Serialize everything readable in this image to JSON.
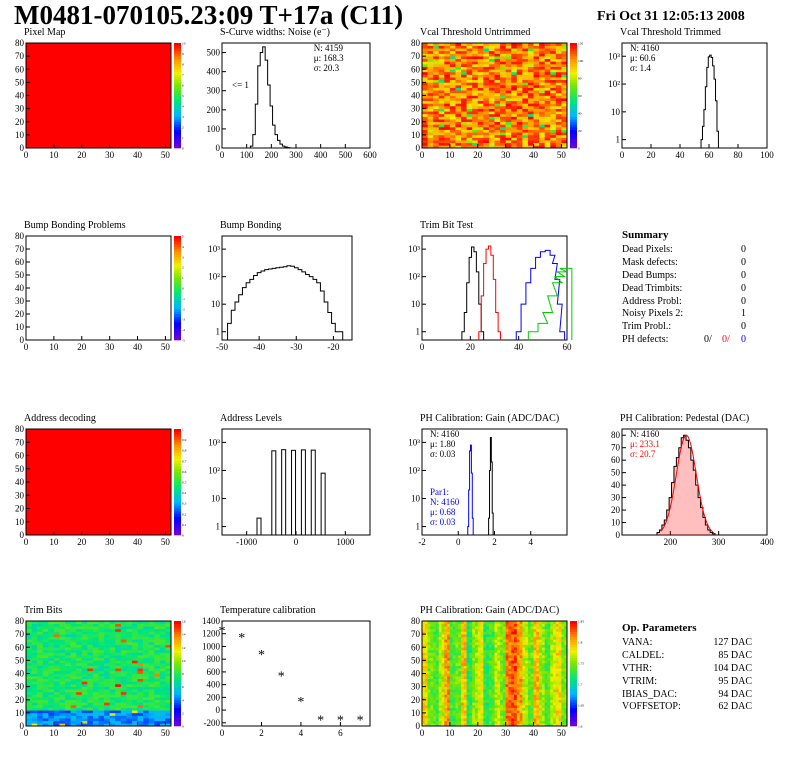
{
  "header": {
    "title": "M0481-070105.23:09 T+17a (C11)",
    "date": "Fri Oct 31 12:05:13 2008"
  },
  "colors": {
    "red": "#ff0000",
    "blue": "#0000ff",
    "green": "#00cc00",
    "black": "#000000"
  },
  "summary": {
    "title": "Summary",
    "rows": [
      {
        "label": "Dead Pixels:",
        "value": "0"
      },
      {
        "label": "Mask defects:",
        "value": "0"
      },
      {
        "label": "Dead Bumps:",
        "value": "0"
      },
      {
        "label": "Dead Trimbits:",
        "value": "0"
      },
      {
        "label": "Address Probl:",
        "value": "0"
      },
      {
        "label": "Noisy Pixels 2:",
        "value": "1"
      },
      {
        "label": "Trim Probl.:",
        "value": "0"
      }
    ],
    "ph_label": "PH defects:",
    "ph_values": [
      "0/",
      "0/",
      "0"
    ]
  },
  "op_params": {
    "title": "Op. Parameters",
    "rows": [
      {
        "label": "VANA:",
        "value": "127 DAC"
      },
      {
        "label": "CALDEL:",
        "value": "85 DAC"
      },
      {
        "label": "VTHR:",
        "value": "104 DAC"
      },
      {
        "label": "VTRIM:",
        "value": "95 DAC"
      },
      {
        "label": "IBIAS_DAC:",
        "value": "94 DAC"
      },
      {
        "label": "VOFFSETOP:",
        "value": "62 DAC"
      }
    ]
  },
  "chart_data": [
    {
      "id": "pixel_map",
      "type": "heatmap",
      "title": "Pixel Map",
      "xlim": [
        0,
        52
      ],
      "ylim": [
        0,
        80
      ],
      "xticks": [
        "0",
        "10",
        "20",
        "30",
        "40",
        "50"
      ],
      "yticks": [
        "0",
        "10",
        "20",
        "30",
        "40",
        "50",
        "60",
        "70",
        "80"
      ],
      "zticks": [
        "0",
        "1",
        "2",
        "3",
        "4",
        "5",
        "6",
        "7",
        "8",
        "9",
        "10"
      ],
      "fill": "uniform-max"
    },
    {
      "id": "scurve_widths",
      "type": "bar",
      "title": "S-Curve widths: Noise (e⁻)",
      "xlim": [
        0,
        600
      ],
      "ylim": [
        0,
        550
      ],
      "xticks": [
        "0",
        "100",
        "200",
        "300",
        "400",
        "500",
        "600"
      ],
      "yticks": [
        "0",
        "100",
        "200",
        "300",
        "400",
        "500"
      ],
      "stats": [
        "N: 4159",
        "μ: 168.3",
        "σ: 20.3"
      ],
      "annotation": "<= 1",
      "x": [
        120,
        130,
        140,
        150,
        160,
        170,
        180,
        190,
        200,
        210,
        220,
        230,
        240,
        250,
        260,
        270
      ],
      "values": [
        10,
        70,
        230,
        430,
        500,
        530,
        460,
        330,
        220,
        120,
        70,
        40,
        20,
        10,
        5,
        2
      ]
    },
    {
      "id": "vcal_untrimmed",
      "type": "heatmap",
      "title": "Vcal Threshold Untrimmed",
      "xlim": [
        0,
        52
      ],
      "ylim": [
        0,
        80
      ],
      "xticks": [
        "0",
        "10",
        "20",
        "30",
        "40",
        "50"
      ],
      "yticks": [
        "0",
        "10",
        "20",
        "30",
        "40",
        "50",
        "60",
        "70",
        "80"
      ],
      "zticks": [
        "0",
        "20",
        "40",
        "60",
        "80",
        "100",
        "120"
      ],
      "fill": "noisy-high"
    },
    {
      "id": "vcal_trimmed",
      "type": "bar",
      "title": "Vcal Threshold Trimmed",
      "xlim": [
        0,
        100
      ],
      "log": true,
      "xticks": [
        "0",
        "20",
        "40",
        "60",
        "80",
        "100"
      ],
      "yticks": [
        "1",
        "10",
        "10²",
        "10³"
      ],
      "stats": [
        "N: 4160",
        "μ: 60.6",
        "σ:  1.4"
      ],
      "x": [
        55,
        56,
        57,
        58,
        59,
        60,
        61,
        62,
        63,
        64,
        65,
        66
      ],
      "values": [
        1,
        3,
        12,
        80,
        400,
        950,
        1100,
        900,
        450,
        150,
        25,
        2
      ]
    },
    {
      "id": "bump_bonding_problems",
      "type": "heatmap",
      "title": "Bump Bonding Problems",
      "xlim": [
        0,
        52
      ],
      "ylim": [
        0,
        80
      ],
      "xticks": [
        "0",
        "10",
        "20",
        "30",
        "40",
        "50"
      ],
      "yticks": [
        "0",
        "10",
        "20",
        "30",
        "40",
        "50",
        "60",
        "70",
        "80"
      ],
      "zticks": [
        "-5",
        "-4",
        "-3",
        "-2",
        "-1",
        "0",
        "1",
        "2",
        "3",
        "4",
        "5"
      ],
      "fill": "empty"
    },
    {
      "id": "bump_bonding",
      "type": "bar",
      "title": "Bump Bonding",
      "xlim": [
        -50,
        -15
      ],
      "log": true,
      "xticks": [
        "-50",
        "-40",
        "-30",
        "-20"
      ],
      "yticks": [
        "1",
        "10",
        "10²",
        "10³"
      ],
      "x": [
        -48,
        -47,
        -46,
        -45,
        -44,
        -43,
        -42,
        -41,
        -40,
        -39,
        -38,
        -37,
        -36,
        -35,
        -34,
        -33,
        -32,
        -31,
        -30,
        -29,
        -28,
        -27,
        -26,
        -25,
        -24,
        -23,
        -22,
        -21,
        -20,
        -19,
        -18
      ],
      "values": [
        2,
        6,
        12,
        22,
        40,
        60,
        80,
        110,
        140,
        160,
        180,
        190,
        200,
        210,
        220,
        230,
        250,
        240,
        210,
        180,
        150,
        120,
        100,
        80,
        60,
        30,
        12,
        5,
        2,
        1,
        1
      ]
    },
    {
      "id": "trim_bit_test",
      "type": "line",
      "title": "Trim Bit Test",
      "xlim": [
        0,
        60
      ],
      "log": true,
      "xticks": [
        "0",
        "20",
        "40",
        "60"
      ],
      "yticks": [
        "1",
        "10",
        "10²",
        "10³"
      ],
      "series": [
        {
          "color": "#000000",
          "x": [
            17,
            18,
            19,
            20,
            21,
            22,
            23,
            24,
            25
          ],
          "values": [
            1,
            5,
            60,
            500,
            1200,
            800,
            150,
            10,
            1
          ]
        },
        {
          "color": "#ff0000",
          "x": [
            24,
            25,
            26,
            27,
            28,
            29,
            30,
            31,
            32
          ],
          "values": [
            1,
            20,
            300,
            1000,
            1300,
            600,
            80,
            5,
            1
          ]
        },
        {
          "color": "#0000ff",
          "x": [
            40,
            42,
            44,
            46,
            48,
            50,
            52,
            54,
            55,
            56,
            57,
            58
          ],
          "values": [
            1,
            10,
            60,
            200,
            500,
            800,
            900,
            600,
            300,
            80,
            10,
            1
          ]
        },
        {
          "color": "#00cc00",
          "x": [
            46,
            50,
            52,
            54,
            56,
            57,
            58,
            59,
            60
          ],
          "values": [
            1,
            2,
            5,
            20,
            60,
            100,
            150,
            200,
            200
          ]
        }
      ]
    },
    {
      "id": "address_decoding",
      "type": "heatmap",
      "title": "Address decoding",
      "xlim": [
        0,
        52
      ],
      "ylim": [
        0,
        80
      ],
      "xticks": [
        "0",
        "10",
        "20",
        "30",
        "40",
        "50"
      ],
      "yticks": [
        "0",
        "10",
        "20",
        "30",
        "40",
        "50",
        "60",
        "70",
        "80"
      ],
      "zticks": [
        "0",
        "0.1",
        "0.2",
        "0.3",
        "0.4",
        "0.5",
        "0.6",
        "0.7",
        "0.8",
        "0.9",
        "1"
      ],
      "fill": "uniform-max"
    },
    {
      "id": "address_levels",
      "type": "bar",
      "title": "Address Levels",
      "xlim": [
        -1500,
        1500
      ],
      "log": true,
      "xticks": [
        "-1000",
        "0",
        "1000"
      ],
      "yticks": [
        "1",
        "10",
        "10²",
        "10³"
      ],
      "x": [
        -750,
        -450,
        -250,
        -50,
        150,
        350,
        550
      ],
      "values": [
        2,
        500,
        550,
        520,
        540,
        530,
        80
      ]
    },
    {
      "id": "ph_gain",
      "type": "bar",
      "title": "PH Calibration: Gain (ADC/DAC)",
      "xlim": [
        -2,
        6
      ],
      "log": true,
      "xticks": [
        "-2",
        "0",
        "2",
        "4"
      ],
      "yticks": [
        "1",
        "10",
        "10²",
        "10³"
      ],
      "stats": [
        "N: 4160",
        "μ: 1.80",
        "σ: 0.03"
      ],
      "stats2": [
        "Par1:",
        "N: 4160",
        "μ: 0.68",
        "σ: 0.03"
      ],
      "series": [
        {
          "color": "#000000",
          "x": [
            1.7,
            1.75,
            1.8,
            1.85,
            1.9
          ],
          "values": [
            2,
            100,
            1500,
            200,
            3
          ]
        },
        {
          "color": "#0000ff",
          "x": [
            0.55,
            0.6,
            0.65,
            0.7,
            0.75,
            0.8
          ],
          "values": [
            1,
            20,
            500,
            800,
            80,
            2
          ]
        }
      ]
    },
    {
      "id": "ph_pedestal",
      "type": "bar",
      "title": "PH Calibration: Pedestal (DAC)",
      "xlim": [
        100,
        400
      ],
      "ylim": [
        0,
        85
      ],
      "xticks": [
        "200",
        "300",
        "400"
      ],
      "yticks": [
        "0",
        "10",
        "20",
        "30",
        "40",
        "50",
        "60",
        "70",
        "80"
      ],
      "stats": [
        "N: 4160",
        "μ: 233.1",
        "σ: 20.7"
      ],
      "x": [
        175,
        180,
        185,
        190,
        195,
        200,
        205,
        210,
        215,
        220,
        225,
        230,
        235,
        240,
        245,
        250,
        255,
        260,
        265,
        270,
        275,
        280,
        285,
        290
      ],
      "values": [
        2,
        4,
        8,
        12,
        20,
        30,
        42,
        55,
        62,
        70,
        78,
        80,
        76,
        70,
        60,
        52,
        40,
        30,
        22,
        14,
        8,
        4,
        2,
        1
      ]
    },
    {
      "id": "trim_bits",
      "type": "heatmap",
      "title": "Trim Bits",
      "xlim": [
        0,
        52
      ],
      "ylim": [
        0,
        80
      ],
      "xticks": [
        "0",
        "10",
        "20",
        "30",
        "40",
        "50"
      ],
      "yticks": [
        "0",
        "10",
        "20",
        "30",
        "40",
        "50",
        "60",
        "70",
        "80"
      ],
      "zticks": [
        "0",
        "2",
        "4",
        "6",
        "8",
        "10",
        "12",
        "14",
        "16"
      ],
      "fill": "trim"
    },
    {
      "id": "temp_calibration",
      "type": "scatter",
      "title": "Temperature calibration",
      "xlim": [
        0,
        7.5
      ],
      "ylim": [
        -250,
        1400
      ],
      "xticks": [
        "0",
        "2",
        "4",
        "6"
      ],
      "yticks": [
        "-200",
        "0",
        "200",
        "400",
        "600",
        "800",
        "1000",
        "1200",
        "1400"
      ],
      "x": [
        0,
        1,
        2,
        3,
        4,
        5,
        6,
        7
      ],
      "values": [
        1260,
        1150,
        880,
        540,
        140,
        -150,
        -150,
        -150
      ]
    },
    {
      "id": "ph_gain_map",
      "type": "heatmap",
      "title": "PH Calibration: Gain (ADC/DAC)",
      "xlim": [
        0,
        52
      ],
      "ylim": [
        0,
        80
      ],
      "xticks": [
        "0",
        "10",
        "20",
        "30",
        "40",
        "50"
      ],
      "yticks": [
        "0",
        "10",
        "20",
        "30",
        "40",
        "50",
        "60",
        "70",
        "80"
      ],
      "zticks": [
        "1.6",
        "1.65",
        "1.7",
        "1.75",
        "1.8",
        "1.85"
      ],
      "fill": "columns"
    }
  ]
}
